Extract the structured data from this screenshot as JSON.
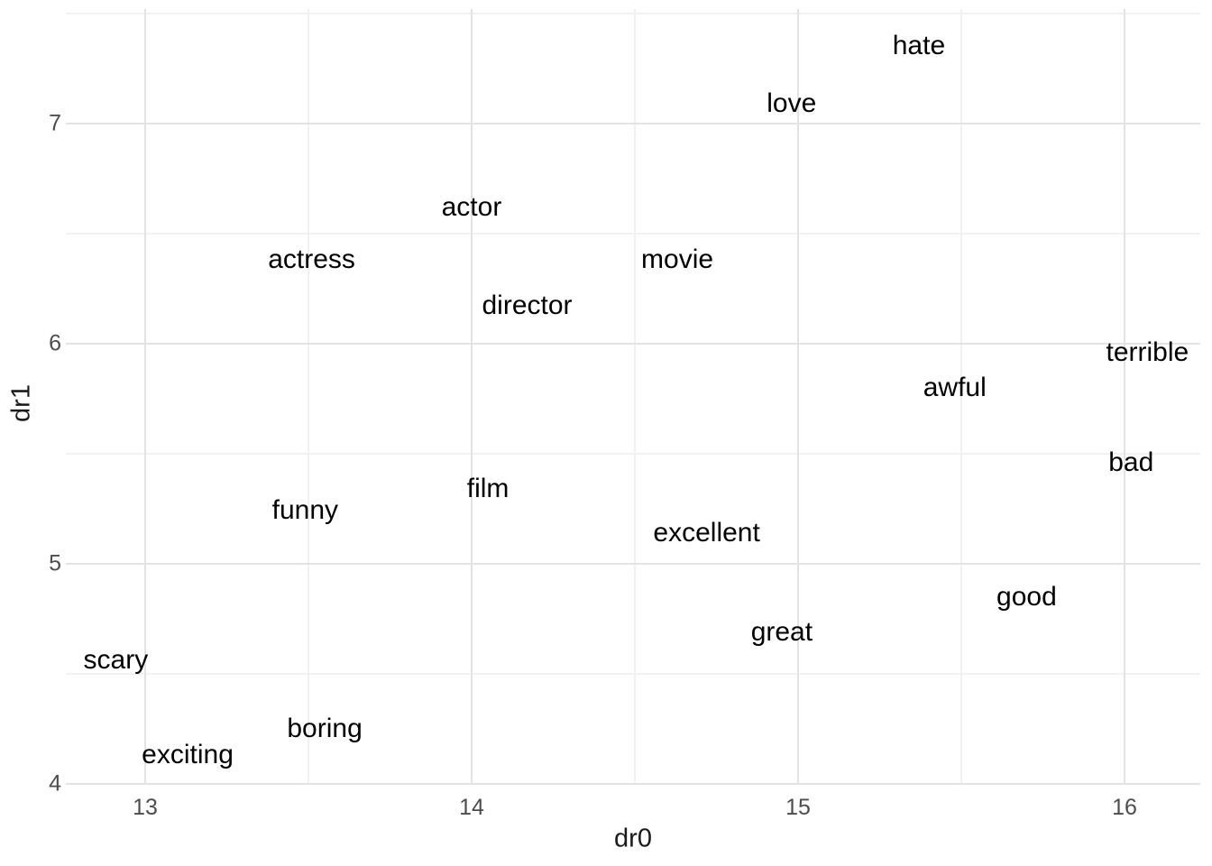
{
  "chart_data": {
    "type": "scatter",
    "title": "",
    "xlabel": "dr0",
    "ylabel": "dr1",
    "xlim": [
      12.757,
      16.232
    ],
    "ylim": [
      4.0,
      7.52
    ],
    "x_ticks": [
      13,
      14,
      15,
      16
    ],
    "y_ticks": [
      4,
      5,
      6,
      7
    ],
    "grid": "major and minor gridlines, no axis lines, no tick marks",
    "legend": "none",
    "points": [
      {
        "label": "hate",
        "x": 15.37,
        "y": 7.35
      },
      {
        "label": "love",
        "x": 14.98,
        "y": 7.09
      },
      {
        "label": "actor",
        "x": 14.0,
        "y": 6.62
      },
      {
        "label": "actress",
        "x": 13.51,
        "y": 6.38
      },
      {
        "label": "movie",
        "x": 14.63,
        "y": 6.38
      },
      {
        "label": "director",
        "x": 14.17,
        "y": 6.17
      },
      {
        "label": "terrible",
        "x": 16.07,
        "y": 5.96
      },
      {
        "label": "awful",
        "x": 15.48,
        "y": 5.8
      },
      {
        "label": "bad",
        "x": 16.02,
        "y": 5.46
      },
      {
        "label": "film",
        "x": 14.05,
        "y": 5.34
      },
      {
        "label": "funny",
        "x": 13.49,
        "y": 5.24
      },
      {
        "label": "excellent",
        "x": 14.72,
        "y": 5.14
      },
      {
        "label": "good",
        "x": 15.7,
        "y": 4.85
      },
      {
        "label": "great",
        "x": 14.95,
        "y": 4.69
      },
      {
        "label": "scary",
        "x": 12.91,
        "y": 4.56
      },
      {
        "label": "boring",
        "x": 13.55,
        "y": 4.25
      },
      {
        "label": "exciting",
        "x": 13.13,
        "y": 4.13
      }
    ],
    "colors": {
      "background": "#FFFFFF",
      "grid_major": "#E3E3E3",
      "grid_minor": "#F1F1F1",
      "tick_label": "#4D4D4D",
      "axis_title": "#1A1A1A",
      "point_label": "#000000"
    }
  }
}
